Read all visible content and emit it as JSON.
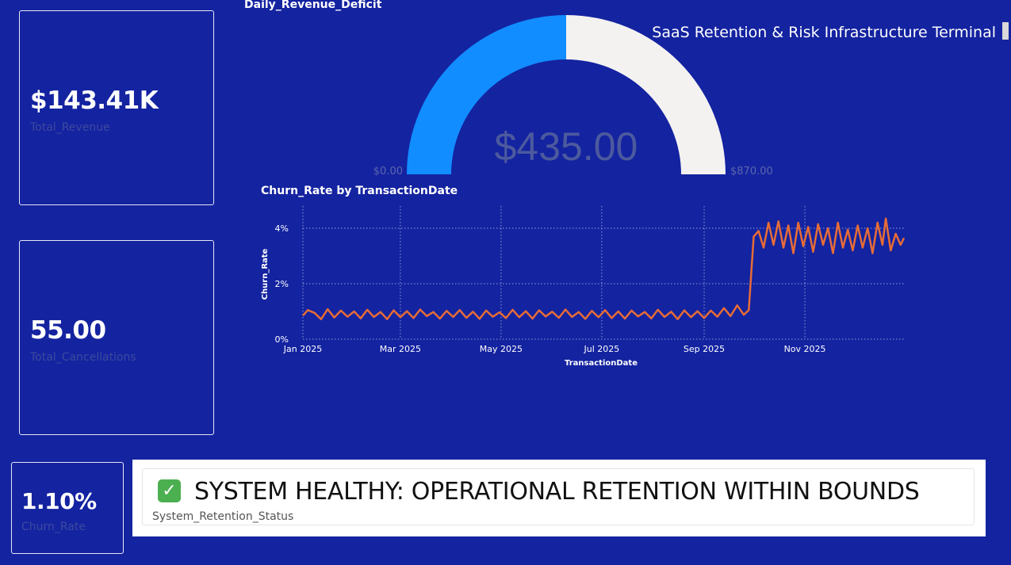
{
  "page_title": "SaaS Retention & Risk Infrastructure Terminal",
  "cards": {
    "total_revenue": {
      "value": "$143.41K",
      "label": "Total_Revenue"
    },
    "total_cancellations": {
      "value": "55.00",
      "label": "Total_Cancellations"
    },
    "churn_rate": {
      "value": "1.10%",
      "label": "Churn_Rate"
    }
  },
  "status": {
    "text": "SYSTEM HEALTHY: OPERATIONAL RETENTION WITHIN BOUNDS",
    "label": "System_Retention_Status",
    "icon": "check-icon"
  },
  "chart_data": [
    {
      "type": "gauge",
      "title": "Daily_Revenue_Deficit",
      "value": 435.0,
      "value_label": "$435.00",
      "min": 0,
      "max": 870,
      "min_label": "$0.00",
      "max_label": "$870.00",
      "fill_color": "#118dff",
      "track_color": "#f3f2f1"
    },
    {
      "type": "line",
      "title": "Churn_Rate by TransactionDate",
      "xlabel": "TransactionDate",
      "ylabel": "Churn_Rate",
      "x_range": [
        "2025-01-01",
        "2025-12-31"
      ],
      "y_range": [
        0,
        0.048
      ],
      "x_ticks": [
        {
          "date": "2025-01-01",
          "label": "Jan 2025"
        },
        {
          "date": "2025-03-01",
          "label": "Mar 2025"
        },
        {
          "date": "2025-05-01",
          "label": "May 2025"
        },
        {
          "date": "2025-07-01",
          "label": "Jul 2025"
        },
        {
          "date": "2025-09-01",
          "label": "Sep 2025"
        },
        {
          "date": "2025-11-01",
          "label": "Nov 2025"
        }
      ],
      "y_ticks": [
        {
          "value": 0,
          "label": "0%"
        },
        {
          "value": 0.02,
          "label": "2%"
        },
        {
          "value": 0.04,
          "label": "4%"
        }
      ],
      "grid": true,
      "series": [
        {
          "color": "#e66c37",
          "points": [
            [
              "2025-01-01",
              0.0085
            ],
            [
              "2025-01-04",
              0.0105
            ],
            [
              "2025-01-08",
              0.0095
            ],
            [
              "2025-01-12",
              0.0072
            ],
            [
              "2025-01-16",
              0.0108
            ],
            [
              "2025-01-20",
              0.0078
            ],
            [
              "2025-01-24",
              0.0103
            ],
            [
              "2025-01-28",
              0.0081
            ],
            [
              "2025-02-01",
              0.01
            ],
            [
              "2025-02-05",
              0.0075
            ],
            [
              "2025-02-09",
              0.0106
            ],
            [
              "2025-02-13",
              0.008
            ],
            [
              "2025-02-17",
              0.0098
            ],
            [
              "2025-02-21",
              0.0072
            ],
            [
              "2025-02-25",
              0.0104
            ],
            [
              "2025-03-01",
              0.0079
            ],
            [
              "2025-03-05",
              0.0101
            ],
            [
              "2025-03-09",
              0.0076
            ],
            [
              "2025-03-13",
              0.0107
            ],
            [
              "2025-03-17",
              0.0083
            ],
            [
              "2025-03-21",
              0.0098
            ],
            [
              "2025-03-25",
              0.0074
            ],
            [
              "2025-03-29",
              0.0102
            ],
            [
              "2025-04-02",
              0.008
            ],
            [
              "2025-04-06",
              0.0105
            ],
            [
              "2025-04-10",
              0.0077
            ],
            [
              "2025-04-14",
              0.0099
            ],
            [
              "2025-04-18",
              0.0073
            ],
            [
              "2025-04-22",
              0.0103
            ],
            [
              "2025-04-26",
              0.0081
            ],
            [
              "2025-04-30",
              0.0097
            ],
            [
              "2025-05-04",
              0.0076
            ],
            [
              "2025-05-08",
              0.0106
            ],
            [
              "2025-05-12",
              0.0079
            ],
            [
              "2025-05-16",
              0.0101
            ],
            [
              "2025-05-20",
              0.0074
            ],
            [
              "2025-05-24",
              0.0104
            ],
            [
              "2025-05-28",
              0.0082
            ],
            [
              "2025-06-01",
              0.0099
            ],
            [
              "2025-06-05",
              0.0077
            ],
            [
              "2025-06-09",
              0.0107
            ],
            [
              "2025-06-13",
              0.008
            ],
            [
              "2025-06-17",
              0.0098
            ],
            [
              "2025-06-21",
              0.0073
            ],
            [
              "2025-06-25",
              0.0102
            ],
            [
              "2025-06-29",
              0.0079
            ],
            [
              "2025-07-03",
              0.0105
            ],
            [
              "2025-07-07",
              0.0076
            ],
            [
              "2025-07-11",
              0.01
            ],
            [
              "2025-07-15",
              0.0074
            ],
            [
              "2025-07-19",
              0.0103
            ],
            [
              "2025-07-23",
              0.0082
            ],
            [
              "2025-07-27",
              0.0098
            ],
            [
              "2025-07-31",
              0.0075
            ],
            [
              "2025-08-04",
              0.0106
            ],
            [
              "2025-08-08",
              0.008
            ],
            [
              "2025-08-12",
              0.0099
            ],
            [
              "2025-08-16",
              0.0072
            ],
            [
              "2025-08-20",
              0.0104
            ],
            [
              "2025-08-24",
              0.0079
            ],
            [
              "2025-08-28",
              0.0101
            ],
            [
              "2025-09-01",
              0.0076
            ],
            [
              "2025-09-05",
              0.0103
            ],
            [
              "2025-09-09",
              0.0081
            ],
            [
              "2025-09-13",
              0.0112
            ],
            [
              "2025-09-17",
              0.0083
            ],
            [
              "2025-09-21",
              0.0122
            ],
            [
              "2025-09-25",
              0.0088
            ],
            [
              "2025-09-28",
              0.0105
            ],
            [
              "2025-10-01",
              0.037
            ],
            [
              "2025-10-04",
              0.039
            ],
            [
              "2025-10-07",
              0.033
            ],
            [
              "2025-10-10",
              0.042
            ],
            [
              "2025-10-13",
              0.034
            ],
            [
              "2025-10-16",
              0.0425
            ],
            [
              "2025-10-19",
              0.033
            ],
            [
              "2025-10-22",
              0.041
            ],
            [
              "2025-10-25",
              0.031
            ],
            [
              "2025-10-28",
              0.042
            ],
            [
              "2025-10-31",
              0.0335
            ],
            [
              "2025-11-03",
              0.0405
            ],
            [
              "2025-11-06",
              0.0315
            ],
            [
              "2025-11-09",
              0.0415
            ],
            [
              "2025-11-12",
              0.034
            ],
            [
              "2025-11-15",
              0.04
            ],
            [
              "2025-11-18",
              0.031
            ],
            [
              "2025-11-21",
              0.042
            ],
            [
              "2025-11-24",
              0.033
            ],
            [
              "2025-11-27",
              0.0395
            ],
            [
              "2025-11-30",
              0.032
            ],
            [
              "2025-12-03",
              0.041
            ],
            [
              "2025-12-06",
              0.033
            ],
            [
              "2025-12-09",
              0.04
            ],
            [
              "2025-12-12",
              0.031
            ],
            [
              "2025-12-15",
              0.042
            ],
            [
              "2025-12-18",
              0.034
            ],
            [
              "2025-12-20",
              0.0435
            ],
            [
              "2025-12-23",
              0.032
            ],
            [
              "2025-12-26",
              0.038
            ],
            [
              "2025-12-29",
              0.034
            ],
            [
              "2025-12-31",
              0.0365
            ]
          ]
        }
      ]
    }
  ]
}
